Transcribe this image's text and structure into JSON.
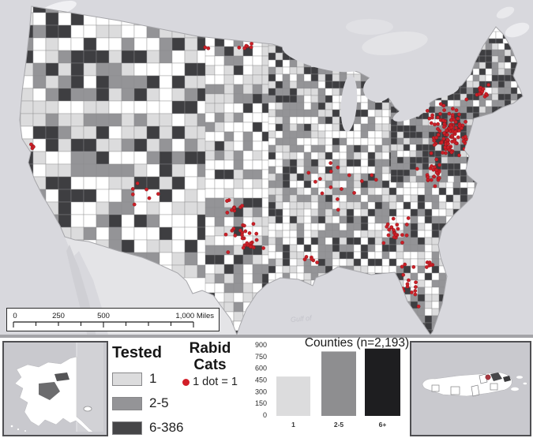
{
  "map": {
    "water_color": "#d8d8dd",
    "canada_patch_color": "#e3e3e6",
    "mexico_color": "#e4e4e7",
    "baja_color": "#cfcfd4",
    "outline_color": "#a6a6aa",
    "county_border_color": "#8c8c8e",
    "county_palette": [
      "#ffffff",
      "#dcdcdd",
      "#949497",
      "#3e3e41"
    ],
    "dot_color": "#cb1f27",
    "watermark": "Gulf of",
    "regions": [
      [
        10,
        0,
        250,
        340,
        16,
        [
          0.34,
          0.27,
          0.21,
          0.18
        ]
      ],
      [
        260,
        35,
        80,
        395,
        12,
        [
          0.45,
          0.25,
          0.17,
          0.13
        ]
      ],
      [
        340,
        40,
        335,
        390,
        9,
        [
          0.3,
          0.22,
          0.26,
          0.22
        ]
      ],
      [
        495,
        55,
        180,
        170,
        8,
        [
          0.12,
          0.16,
          0.3,
          0.42
        ]
      ]
    ],
    "dot_clusters": [
      [
        570,
        168,
        30,
        38,
        105
      ],
      [
        612,
        115,
        14,
        12,
        14
      ],
      [
        548,
        222,
        20,
        18,
        24
      ],
      [
        505,
        292,
        22,
        18,
        22
      ],
      [
        520,
        360,
        14,
        26,
        16
      ],
      [
        545,
        332,
        10,
        12,
        6
      ],
      [
        312,
        303,
        24,
        22,
        28
      ],
      [
        298,
        262,
        18,
        10,
        10
      ],
      [
        428,
        235,
        55,
        38,
        16
      ],
      [
        390,
        330,
        16,
        10,
        6
      ],
      [
        311,
        60,
        10,
        5,
        6
      ],
      [
        263,
        62,
        4,
        3,
        2
      ],
      [
        40,
        186,
        5,
        5,
        4
      ],
      [
        178,
        246,
        28,
        22,
        7
      ]
    ]
  },
  "scalebar": {
    "tick_labels": [
      "0",
      "250",
      "500"
    ],
    "end_label": "1,000 Miles"
  },
  "legend": {
    "title": "Tested",
    "items": [
      {
        "label": "1",
        "color": "#dcdcdd"
      },
      {
        "label": "2-5",
        "color": "#949497"
      },
      {
        "label": "6-386",
        "color": "#454547"
      }
    ]
  },
  "rabid": {
    "line1": "Rabid",
    "line2": "Cats",
    "dot_label": "1 dot = 1",
    "dot_color": "#d21e28"
  },
  "chart_data": {
    "type": "bar",
    "title": "Counties (n=2,193)",
    "categories": [
      "1",
      "2-5",
      "6+"
    ],
    "values": [
      505,
      825,
      863
    ],
    "bar_colors": [
      "#dcdcdd",
      "#8e8e90",
      "#1e1e20"
    ],
    "xlabel": "",
    "ylabel": "",
    "ylim": [
      0,
      900
    ],
    "yticks": [
      0,
      150,
      300,
      450,
      600,
      750,
      900
    ],
    "grid": false,
    "legend_position": "none"
  }
}
